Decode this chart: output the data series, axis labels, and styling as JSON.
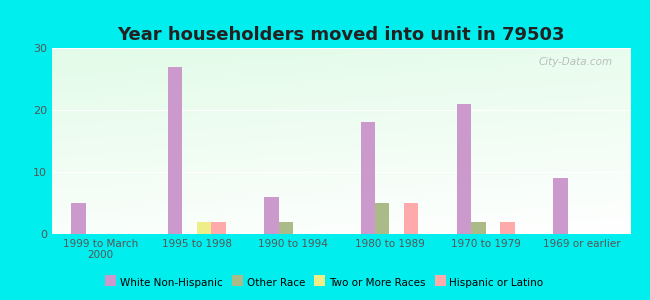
{
  "title": "Year householders moved into unit in 79503",
  "categories": [
    "1999 to March\n2000",
    "1995 to 1998",
    "1990 to 1994",
    "1980 to 1989",
    "1970 to 1979",
    "1969 or earlier"
  ],
  "series": {
    "White Non-Hispanic": [
      5,
      27,
      6,
      18,
      21,
      9
    ],
    "Other Race": [
      0,
      0,
      2,
      5,
      2,
      0
    ],
    "Two or More Races": [
      0,
      2,
      0,
      0,
      0,
      0
    ],
    "Hispanic or Latino": [
      0,
      2,
      0,
      5,
      2,
      0
    ]
  },
  "colors": {
    "White Non-Hispanic": "#cc99cc",
    "Other Race": "#aabb88",
    "Two or More Races": "#eeee88",
    "Hispanic or Latino": "#ffaaaa"
  },
  "ylim": [
    0,
    30
  ],
  "yticks": [
    0,
    10,
    20,
    30
  ],
  "background_color": "#00eeee",
  "watermark": "City-Data.com",
  "bar_width": 0.15,
  "title_fontsize": 13
}
